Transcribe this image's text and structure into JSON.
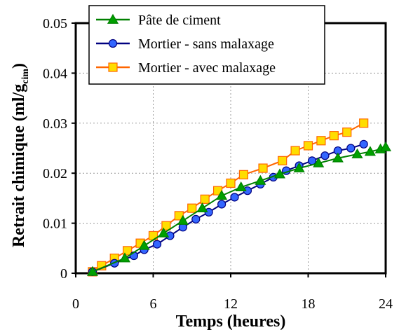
{
  "chart_data": {
    "type": "line",
    "xlabel": "Temps (heures)",
    "ylabel": "Retrait chimique (ml/g",
    "ylabel_sub": "cim",
    "ylabel_close": ")",
    "xlim": [
      0,
      24
    ],
    "ylim": [
      0,
      0.05
    ],
    "xticks": [
      0,
      6,
      12,
      18,
      24
    ],
    "xtick_labels": [
      "0",
      "6",
      "12",
      "18",
      "24"
    ],
    "yticks": [
      0,
      0.01,
      0.02,
      0.03,
      0.04,
      0.05
    ],
    "ytick_labels": [
      "0",
      "0.01",
      "0.02",
      "0.03",
      "0.04",
      "0.05"
    ],
    "grid": true,
    "legend_position": "top-left",
    "series": [
      {
        "name": "Pâte de ciment",
        "color": "#008000",
        "marker": "triangle",
        "marker_fill": "#00a000",
        "x": [
          1.3,
          3.8,
          5.3,
          6.8,
          8.3,
          9.8,
          11.3,
          12.8,
          14.3,
          15.8,
          17.3,
          18.8,
          20.3,
          21.8,
          22.8,
          23.6,
          24.0
        ],
        "y": [
          0.0003,
          0.003,
          0.0055,
          0.008,
          0.0105,
          0.013,
          0.0155,
          0.0172,
          0.0185,
          0.0198,
          0.021,
          0.022,
          0.023,
          0.0238,
          0.0243,
          0.0248,
          0.0252
        ]
      },
      {
        "name": "Mortier - sans malaxage",
        "color": "#000080",
        "marker": "circle",
        "marker_fill": "#3366ff",
        "x": [
          1.3,
          3.0,
          4.5,
          5.3,
          6.3,
          7.3,
          8.3,
          9.3,
          10.3,
          11.3,
          12.3,
          13.3,
          14.3,
          15.3,
          16.3,
          17.3,
          18.3,
          19.3,
          20.3,
          21.3,
          22.3
        ],
        "y": [
          0.0003,
          0.002,
          0.0035,
          0.0047,
          0.0058,
          0.0075,
          0.0092,
          0.0108,
          0.0122,
          0.0138,
          0.0152,
          0.0165,
          0.0178,
          0.0192,
          0.0205,
          0.0215,
          0.0225,
          0.0235,
          0.0245,
          0.025,
          0.0258
        ]
      },
      {
        "name": "Mortier - avec malaxage",
        "color": "#ff6600",
        "marker": "square",
        "marker_fill": "#ffdd00",
        "x": [
          1.3,
          2.0,
          3.0,
          4.0,
          5.0,
          6.0,
          7.0,
          8.0,
          9.0,
          10.0,
          11.0,
          12.0,
          13.0,
          14.5,
          16.0,
          17.0,
          18.0,
          19.0,
          20.0,
          21.0,
          22.3
        ],
        "y": [
          0.0003,
          0.0015,
          0.003,
          0.0045,
          0.006,
          0.0075,
          0.0095,
          0.0115,
          0.013,
          0.0148,
          0.0165,
          0.018,
          0.0197,
          0.021,
          0.0225,
          0.0245,
          0.0255,
          0.0265,
          0.0275,
          0.0282,
          0.03
        ]
      }
    ]
  }
}
